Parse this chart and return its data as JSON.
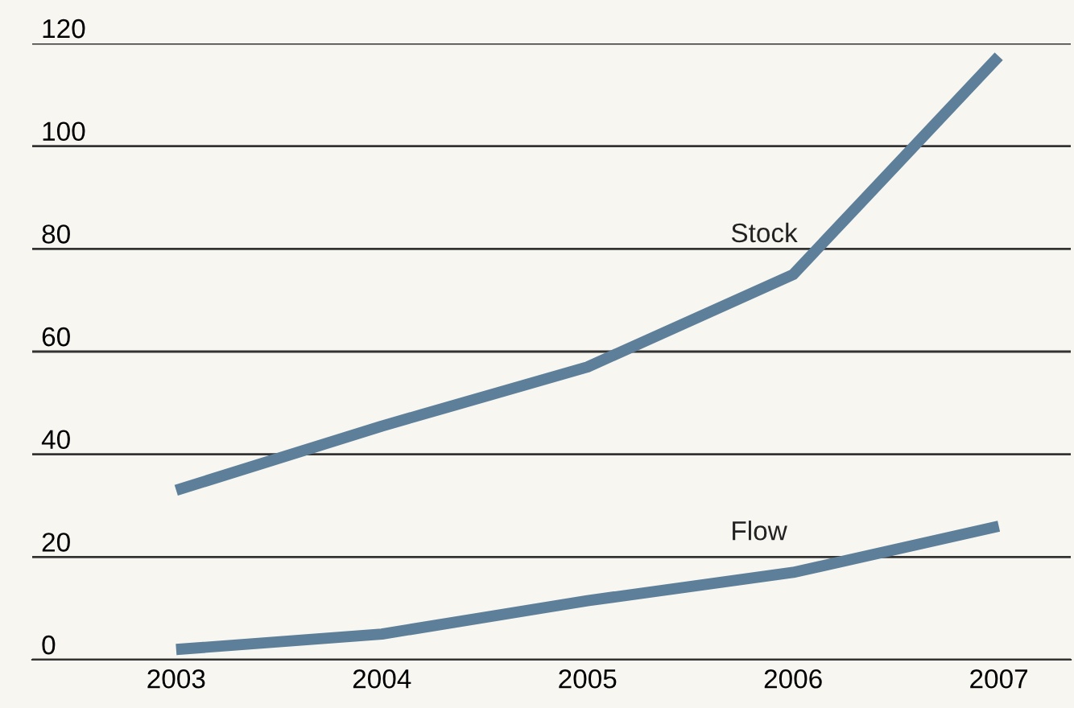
{
  "chart_data": {
    "type": "line",
    "x": [
      2003,
      2004,
      2005,
      2006,
      2007
    ],
    "series": [
      {
        "name": "Stock",
        "color": "#5d7f99",
        "values": [
          33,
          45.5,
          57,
          75,
          117.5
        ]
      },
      {
        "name": "Flow",
        "color": "#5d7f99",
        "values": [
          2,
          5,
          11.5,
          17,
          26
        ]
      }
    ],
    "xlim": [
      2002.3,
      2007.35
    ],
    "xticks": [
      2003,
      2004,
      2005,
      2006,
      2007
    ],
    "ylim": [
      0,
      120
    ],
    "yticks": [
      0,
      20,
      40,
      60,
      80,
      100,
      120
    ],
    "grid": "y",
    "legend": false,
    "marker": "none",
    "line_style": "solid"
  }
}
